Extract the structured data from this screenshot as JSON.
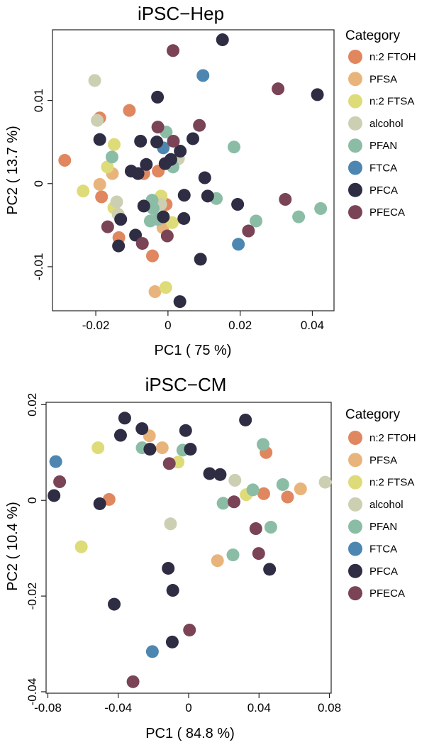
{
  "categories": [
    {
      "name": "n:2 FTOH",
      "color": "#E0875F"
    },
    {
      "name": "PFSA",
      "color": "#E9B47B"
    },
    {
      "name": "n:2 FTSA",
      "color": "#DEDB79"
    },
    {
      "name": "alcohol",
      "color": "#CCCFB2"
    },
    {
      "name": "PFAN",
      "color": "#8BBDA6"
    },
    {
      "name": "FTCA",
      "color": "#4D86B0"
    },
    {
      "name": "PFCA",
      "color": "#2E2D44"
    },
    {
      "name": "PFECA",
      "color": "#7A4456"
    }
  ],
  "chart_data": [
    {
      "type": "scatter",
      "title": "iPSC−Hep",
      "xlabel": "PC1 ( 75 %)",
      "ylabel": "PC2 ( 13.7 %)",
      "legend_title": "Category",
      "xlim": [
        -0.032,
        0.046
      ],
      "ylim": [
        -0.0153,
        0.0185
      ],
      "xticks": [
        -0.02,
        0,
        0.02,
        0.04
      ],
      "xtick_labels": [
        "-0.02",
        "0",
        "0.02",
        "0.04"
      ],
      "yticks": [
        -0.01,
        0,
        0.01
      ],
      "ytick_labels": [
        "-0.01",
        "0",
        "0.01"
      ],
      "points": [
        {
          "x": -0.0286,
          "y": 0.0028,
          "c": 0
        },
        {
          "x": -0.0189,
          "y": 0.0079,
          "c": 0
        },
        {
          "x": -0.0107,
          "y": 0.0088,
          "c": 0
        },
        {
          "x": -0.0184,
          "y": -0.0016,
          "c": 0
        },
        {
          "x": -0.0136,
          "y": -0.0065,
          "c": 0
        },
        {
          "x": -0.0067,
          "y": 0.0012,
          "c": 0
        },
        {
          "x": -0.0027,
          "y": 0.0015,
          "c": 0
        },
        {
          "x": -0.0005,
          "y": -0.0025,
          "c": 0
        },
        {
          "x": -0.0043,
          "y": -0.0087,
          "c": 0
        },
        {
          "x": -0.0189,
          "y": -0.0001,
          "c": 1
        },
        {
          "x": -0.0154,
          "y": 0.0012,
          "c": 1
        },
        {
          "x": -0.0014,
          "y": -0.0053,
          "c": 1
        },
        {
          "x": -0.0036,
          "y": -0.013,
          "c": 1
        },
        {
          "x": -0.0235,
          "y": -0.0009,
          "c": 2
        },
        {
          "x": -0.0149,
          "y": 0.0047,
          "c": 2
        },
        {
          "x": -0.0168,
          "y": 0.002,
          "c": 2
        },
        {
          "x": -0.015,
          "y": -0.0029,
          "c": 2
        },
        {
          "x": -0.0019,
          "y": -0.0015,
          "c": 2
        },
        {
          "x": 0.0012,
          "y": -0.0047,
          "c": 2
        },
        {
          "x": -0.0006,
          "y": -0.0125,
          "c": 2
        },
        {
          "x": -0.0203,
          "y": 0.0124,
          "c": 3
        },
        {
          "x": -0.0196,
          "y": 0.0076,
          "c": 3
        },
        {
          "x": -0.0142,
          "y": -0.0022,
          "c": 3
        },
        {
          "x": -0.0138,
          "y": -0.0037,
          "c": 3
        },
        {
          "x": 0.0029,
          "y": 0.003,
          "c": 3
        },
        {
          "x": -0.002,
          "y": -0.0025,
          "c": 3
        },
        {
          "x": -0.0155,
          "y": 0.0032,
          "c": 4
        },
        {
          "x": -0.0005,
          "y": 0.0062,
          "c": 4
        },
        {
          "x": 0.0014,
          "y": 0.002,
          "c": 4
        },
        {
          "x": -0.0044,
          "y": -0.002,
          "c": 4
        },
        {
          "x": -0.0041,
          "y": -0.003,
          "c": 4
        },
        {
          "x": -0.0049,
          "y": -0.0045,
          "c": 4
        },
        {
          "x": -0.0028,
          "y": -0.0043,
          "c": 4
        },
        {
          "x": 0.0183,
          "y": 0.0044,
          "c": 4
        },
        {
          "x": 0.0134,
          "y": -0.0018,
          "c": 4
        },
        {
          "x": 0.0244,
          "y": -0.0045,
          "c": 4
        },
        {
          "x": 0.0362,
          "y": -0.004,
          "c": 4
        },
        {
          "x": 0.0423,
          "y": -0.003,
          "c": 4
        },
        {
          "x": 0.0097,
          "y": 0.013,
          "c": 5
        },
        {
          "x": -0.0013,
          "y": 0.0043,
          "c": 5
        },
        {
          "x": 0.0195,
          "y": -0.0073,
          "c": 5
        },
        {
          "x": 0.0151,
          "y": 0.0173,
          "c": 6
        },
        {
          "x": -0.0029,
          "y": 0.0104,
          "c": 6
        },
        {
          "x": 0.0414,
          "y": 0.0107,
          "c": 6
        },
        {
          "x": -0.0189,
          "y": 0.0053,
          "c": 6
        },
        {
          "x": -0.0076,
          "y": 0.0051,
          "c": 6
        },
        {
          "x": -0.0031,
          "y": 0.005,
          "c": 6
        },
        {
          "x": 0.0034,
          "y": 0.0039,
          "c": 6
        },
        {
          "x": 0.0069,
          "y": 0.0054,
          "c": 6
        },
        {
          "x": -0.0102,
          "y": 0.0015,
          "c": 6
        },
        {
          "x": -0.006,
          "y": 0.0023,
          "c": 6
        },
        {
          "x": -0.0083,
          "y": 0.0012,
          "c": 6
        },
        {
          "x": -0.0008,
          "y": 0.0024,
          "c": 6
        },
        {
          "x": 0.0008,
          "y": 0.0029,
          "c": 6
        },
        {
          "x": 0.0102,
          "y": 0.0007,
          "c": 6
        },
        {
          "x": 0.0045,
          "y": -0.0014,
          "c": 6
        },
        {
          "x": 0.011,
          "y": -0.0015,
          "c": 6
        },
        {
          "x": 0.0193,
          "y": -0.0025,
          "c": 6
        },
        {
          "x": -0.0131,
          "y": -0.0043,
          "c": 6
        },
        {
          "x": -0.0067,
          "y": -0.0027,
          "c": 6
        },
        {
          "x": -0.0013,
          "y": -0.004,
          "c": 6
        },
        {
          "x": 0.0044,
          "y": -0.0042,
          "c": 6
        },
        {
          "x": -0.009,
          "y": -0.0062,
          "c": 6
        },
        {
          "x": -0.0137,
          "y": -0.0075,
          "c": 6
        },
        {
          "x": 0.009,
          "y": -0.0091,
          "c": 6
        },
        {
          "x": 0.0033,
          "y": -0.0142,
          "c": 6
        },
        {
          "x": 0.0014,
          "y": 0.016,
          "c": 7
        },
        {
          "x": 0.0305,
          "y": 0.0114,
          "c": 7
        },
        {
          "x": -0.0028,
          "y": 0.0068,
          "c": 7
        },
        {
          "x": 0.0087,
          "y": 0.007,
          "c": 7
        },
        {
          "x": 0.0015,
          "y": 0.0051,
          "c": 7
        },
        {
          "x": -0.0167,
          "y": -0.0052,
          "c": 7
        },
        {
          "x": -0.0071,
          "y": -0.0072,
          "c": 7
        },
        {
          "x": -0.0002,
          "y": -0.0063,
          "c": 7
        },
        {
          "x": 0.0223,
          "y": -0.0057,
          "c": 7
        },
        {
          "x": 0.0325,
          "y": -0.0019,
          "c": 7
        }
      ]
    },
    {
      "type": "scatter",
      "title": "iPSC−CM",
      "xlabel": "PC1 ( 84.8 %)",
      "ylabel": "PC2 ( 10.4 %)",
      "legend_title": "Category",
      "xlim": [
        -0.081,
        0.081
      ],
      "ylim": [
        -0.0403,
        0.0205
      ],
      "xticks": [
        -0.08,
        -0.04,
        0,
        0.04,
        0.08
      ],
      "xtick_labels": [
        "-0.08",
        "-0.04",
        "0",
        "0.04",
        "0.08"
      ],
      "yticks": [
        -0.04,
        -0.02,
        0,
        0.02
      ],
      "ytick_labels": [
        "-0.04",
        "-0.02",
        "0",
        "0.02"
      ],
      "points": [
        {
          "x": -0.0452,
          "y": 0.0002,
          "c": 0
        },
        {
          "x": 0.044,
          "y": 0.01,
          "c": 0
        },
        {
          "x": 0.0427,
          "y": 0.0014,
          "c": 0
        },
        {
          "x": 0.0562,
          "y": 0.0007,
          "c": 0
        },
        {
          "x": -0.0223,
          "y": 0.0135,
          "c": 1
        },
        {
          "x": -0.015,
          "y": 0.011,
          "c": 1
        },
        {
          "x": 0.0636,
          "y": 0.0024,
          "c": 1
        },
        {
          "x": 0.0164,
          "y": -0.0126,
          "c": 1
        },
        {
          "x": -0.0515,
          "y": 0.011,
          "c": 2
        },
        {
          "x": -0.006,
          "y": 0.008,
          "c": 2
        },
        {
          "x": 0.0327,
          "y": 0.0012,
          "c": 2
        },
        {
          "x": -0.061,
          "y": -0.0097,
          "c": 2
        },
        {
          "x": 0.0263,
          "y": 0.0042,
          "c": 3
        },
        {
          "x": 0.0776,
          "y": 0.0038,
          "c": 3
        },
        {
          "x": -0.0103,
          "y": -0.0049,
          "c": 3
        },
        {
          "x": -0.0264,
          "y": 0.011,
          "c": 4
        },
        {
          "x": -0.0033,
          "y": 0.0105,
          "c": 4
        },
        {
          "x": 0.0423,
          "y": 0.0117,
          "c": 4
        },
        {
          "x": 0.0365,
          "y": 0.0022,
          "c": 4
        },
        {
          "x": 0.0535,
          "y": 0.0033,
          "c": 4
        },
        {
          "x": 0.0196,
          "y": -0.0006,
          "c": 4
        },
        {
          "x": 0.0467,
          "y": -0.0056,
          "c": 4
        },
        {
          "x": 0.0252,
          "y": -0.0114,
          "c": 4
        },
        {
          "x": -0.0755,
          "y": 0.0081,
          "c": 5
        },
        {
          "x": -0.0206,
          "y": -0.0316,
          "c": 5
        },
        {
          "x": -0.0363,
          "y": 0.0172,
          "c": 6
        },
        {
          "x": -0.0265,
          "y": 0.015,
          "c": 6
        },
        {
          "x": -0.0387,
          "y": 0.0136,
          "c": 6
        },
        {
          "x": -0.0017,
          "y": 0.0146,
          "c": 6
        },
        {
          "x": 0.0323,
          "y": 0.0168,
          "c": 6
        },
        {
          "x": -0.022,
          "y": 0.0107,
          "c": 6
        },
        {
          "x": 0.001,
          "y": 0.0107,
          "c": 6
        },
        {
          "x": 0.0119,
          "y": 0.0056,
          "c": 6
        },
        {
          "x": 0.0179,
          "y": 0.0054,
          "c": 6
        },
        {
          "x": -0.0765,
          "y": 0.001,
          "c": 6
        },
        {
          "x": -0.0505,
          "y": -0.0007,
          "c": 6
        },
        {
          "x": -0.0116,
          "y": -0.0142,
          "c": 6
        },
        {
          "x": -0.009,
          "y": -0.0188,
          "c": 6
        },
        {
          "x": 0.046,
          "y": -0.0144,
          "c": 6
        },
        {
          "x": -0.0423,
          "y": -0.0217,
          "c": 6
        },
        {
          "x": -0.0093,
          "y": -0.0296,
          "c": 6
        },
        {
          "x": -0.0733,
          "y": 0.0039,
          "c": 7
        },
        {
          "x": -0.011,
          "y": 0.0077,
          "c": 7
        },
        {
          "x": 0.0258,
          "y": -0.0003,
          "c": 7
        },
        {
          "x": 0.0382,
          "y": -0.0059,
          "c": 7
        },
        {
          "x": 0.0398,
          "y": -0.0111,
          "c": 7
        },
        {
          "x": 0.0005,
          "y": -0.0271,
          "c": 7
        },
        {
          "x": -0.0316,
          "y": -0.0379,
          "c": 7
        }
      ]
    }
  ]
}
